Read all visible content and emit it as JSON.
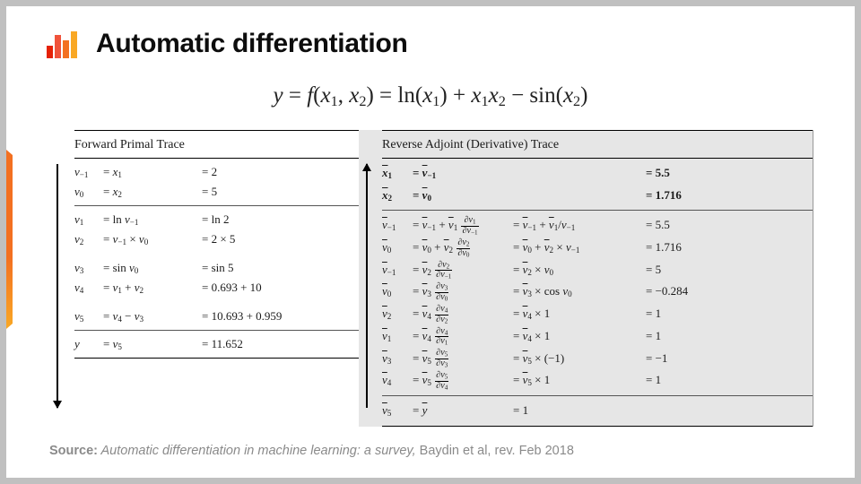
{
  "accent_gradient": [
    "#f37021",
    "#f9a825"
  ],
  "slide": {
    "title": "Automatic differentiation",
    "equation_html": "<span class='it'>y</span> <span class='op'>=</span> <span class='it'>f</span><span class='op'>(</span><span class='it'>x</span><span class='sub'>1</span><span class='op'>,</span> <span class='it'>x</span><span class='sub'>2</span><span class='op'>)</span> <span class='op'>=</span> <span class='fn'>ln</span><span class='op'>(</span><span class='it'>x</span><span class='sub'>1</span><span class='op'>)</span> <span class='op'>+</span> <span class='it'>x</span><span class='sub'>1</span><span class='it'>x</span><span class='sub'>2</span> <span class='op'>&minus;</span> <span class='fn'>sin</span><span class='op'>(</span><span class='it'>x</span><span class='sub'>2</span><span class='op'>)</span>"
  },
  "forward": {
    "title": "Forward Primal Trace",
    "sections": [
      [
        {
          "v": "v<sub>&minus;1</sub>",
          "eq": "= <span class='it'>x</span><sub>1</sub>",
          "val": "= 2"
        },
        {
          "v": "v<sub>0</sub>",
          "eq": "= <span class='it'>x</span><sub>2</sub>",
          "val": "= 5"
        }
      ],
      [
        {
          "v": "v<sub>1</sub>",
          "eq": "= <span class='op'>ln</span> <span class='it'>v</span><sub>&minus;1</sub>",
          "val": "= <span class='op'>ln</span> 2"
        },
        {
          "v": "v<sub>2</sub>",
          "eq": "= <span class='it'>v</span><sub>&minus;1</sub> &times; <span class='it'>v</span><sub>0</sub>",
          "val": "= 2 &times; 5"
        },
        {
          "spacer": true
        },
        {
          "v": "v<sub>3</sub>",
          "eq": "= <span class='op'>sin</span> <span class='it'>v</span><sub>0</sub>",
          "val": "= <span class='op'>sin</span> 5"
        },
        {
          "v": "v<sub>4</sub>",
          "eq": "= <span class='it'>v</span><sub>1</sub> + <span class='it'>v</span><sub>2</sub>",
          "val": "= 0.693 + 10"
        },
        {
          "spacer": true
        },
        {
          "v": "v<sub>5</sub>",
          "eq": "= <span class='it'>v</span><sub>4</sub> &minus; <span class='it'>v</span><sub>3</sub>",
          "val": "= 10.693 + 0.959"
        }
      ],
      [
        {
          "v": "y",
          "eq": "= <span class='it'>v</span><sub>5</sub>",
          "val": "= 11.652"
        }
      ]
    ]
  },
  "reverse": {
    "title": "Reverse Adjoint (Derivative) Trace",
    "sections": [
      [
        {
          "bold": true,
          "v": "<span class='bar'>x</span><sub>1</sub>",
          "eq": "= <span class='bar it'>v</span><sub>&minus;1</sub>",
          "mid": "",
          "val": "= 5.5"
        },
        {
          "bold": true,
          "v": "<span class='bar'>x</span><sub>2</sub>",
          "eq": "= <span class='bar it'>v</span><sub>0</sub>",
          "mid": "",
          "val": "= 1.716"
        }
      ],
      [
        {
          "v": "<span class='bar'>v</span><sub>&minus;1</sub>",
          "eq": "= <span class='bar it'>v</span><sub>&minus;1</sub> + <span class='bar it'>v</span><sub>1</sub> <span class='frac'><span class='num'>&part;<span class='it'>v</span><sub>1</sub></span><span class='den'>&part;<span class='it'>v</span><sub>&minus;1</sub></span></span>",
          "mid": "= <span class='bar it'>v</span><sub>&minus;1</sub> + <span class='bar it'>v</span><sub>1</sub>/<span class='it'>v</span><sub>&minus;1</sub>",
          "val": "= 5.5"
        },
        {
          "v": "<span class='bar'>v</span><sub>0</sub>",
          "eq": "= <span class='bar it'>v</span><sub>0</sub> + <span class='bar it'>v</span><sub>2</sub> <span class='frac'><span class='num'>&part;<span class='it'>v</span><sub>2</sub></span><span class='den'>&part;<span class='it'>v</span><sub>0</sub></span></span>",
          "mid": "= <span class='bar it'>v</span><sub>0</sub> + <span class='bar it'>v</span><sub>2</sub> &times; <span class='it'>v</span><sub>&minus;1</sub>",
          "val": "= 1.716"
        },
        {
          "v": "<span class='bar'>v</span><sub>&minus;1</sub>",
          "eq": "= <span class='bar it'>v</span><sub>2</sub> <span class='frac'><span class='num'>&part;<span class='it'>v</span><sub>2</sub></span><span class='den'>&part;<span class='it'>v</span><sub>&minus;1</sub></span></span>",
          "mid": "= <span class='bar it'>v</span><sub>2</sub> &times; <span class='it'>v</span><sub>0</sub>",
          "val": "= 5"
        },
        {
          "v": "<span class='bar'>v</span><sub>0</sub>",
          "eq": "= <span class='bar it'>v</span><sub>3</sub> <span class='frac'><span class='num'>&part;<span class='it'>v</span><sub>3</sub></span><span class='den'>&part;<span class='it'>v</span><sub>0</sub></span></span>",
          "mid": "= <span class='bar it'>v</span><sub>3</sub> &times; <span class='op'>cos</span> <span class='it'>v</span><sub>0</sub>",
          "val": "= &minus;0.284"
        },
        {
          "v": "<span class='bar'>v</span><sub>2</sub>",
          "eq": "= <span class='bar it'>v</span><sub>4</sub> <span class='frac'><span class='num'>&part;<span class='it'>v</span><sub>4</sub></span><span class='den'>&part;<span class='it'>v</span><sub>2</sub></span></span>",
          "mid": "= <span class='bar it'>v</span><sub>4</sub> &times; 1",
          "val": "= 1"
        },
        {
          "v": "<span class='bar'>v</span><sub>1</sub>",
          "eq": "= <span class='bar it'>v</span><sub>4</sub> <span class='frac'><span class='num'>&part;<span class='it'>v</span><sub>4</sub></span><span class='den'>&part;<span class='it'>v</span><sub>1</sub></span></span>",
          "mid": "= <span class='bar it'>v</span><sub>4</sub> &times; 1",
          "val": "= 1"
        },
        {
          "v": "<span class='bar'>v</span><sub>3</sub>",
          "eq": "= <span class='bar it'>v</span><sub>5</sub> <span class='frac'><span class='num'>&part;<span class='it'>v</span><sub>5</sub></span><span class='den'>&part;<span class='it'>v</span><sub>3</sub></span></span>",
          "mid": "= <span class='bar it'>v</span><sub>5</sub> &times; (&minus;1)",
          "val": "= &minus;1"
        },
        {
          "v": "<span class='bar'>v</span><sub>4</sub>",
          "eq": "= <span class='bar it'>v</span><sub>5</sub> <span class='frac'><span class='num'>&part;<span class='it'>v</span><sub>5</sub></span><span class='den'>&part;<span class='it'>v</span><sub>4</sub></span></span>",
          "mid": "= <span class='bar it'>v</span><sub>5</sub> &times; 1",
          "val": "= 1"
        }
      ],
      [
        {
          "v": "<span class='bar'>v</span><sub>5</sub>",
          "eq": "= <span class='bar it'>y</span>",
          "mid": "= 1",
          "val": ""
        }
      ]
    ]
  },
  "source": {
    "label": "Source:",
    "text_italic": " Automatic differentiation in machine learning: a survey, ",
    "text_roman": "Baydin et al, rev. Feb 2018"
  },
  "colors": {
    "page_bg": "#c0c0c0",
    "slide_bg": "#ffffff",
    "rev_bg": "#e6e6e6",
    "text": "#1a1a1a",
    "source_text": "#8a8a8a",
    "rule": "#000000"
  }
}
